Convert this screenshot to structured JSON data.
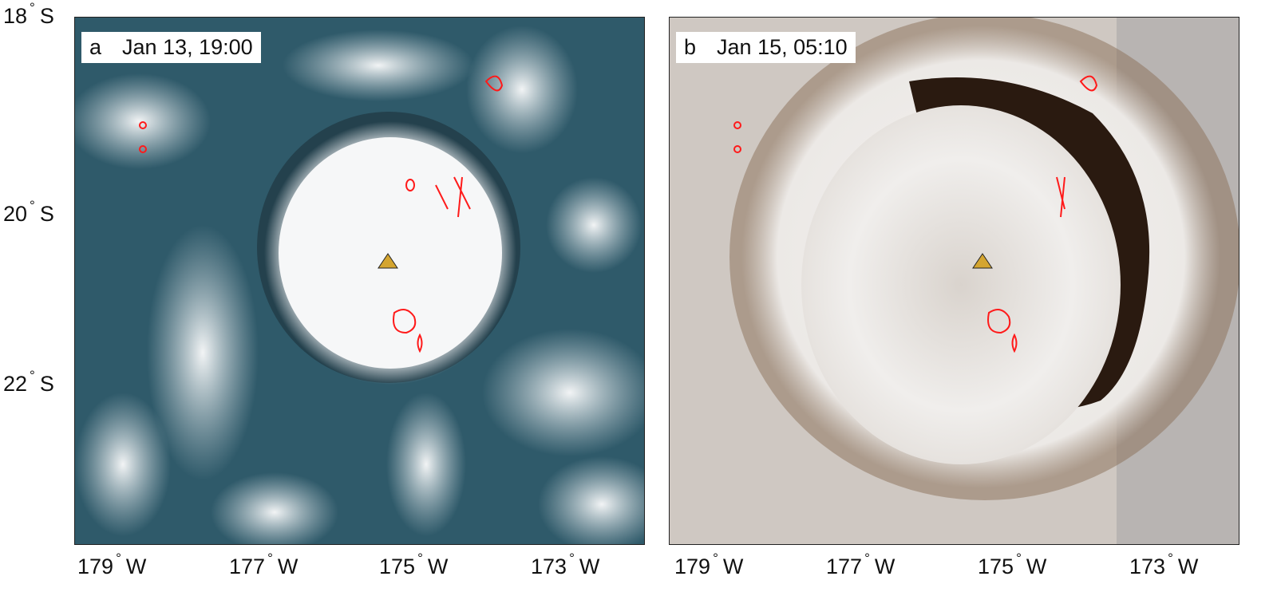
{
  "panels": [
    {
      "letter": "a",
      "timestamp": "Jan 13, 19:00",
      "background": "#2f5a6a"
    },
    {
      "letter": "b",
      "timestamp": "Jan 15, 05:10",
      "background": "#cfc8c2"
    }
  ],
  "lat_ticks": [
    {
      "value": "18",
      "hemi": "S"
    },
    {
      "value": "20",
      "hemi": "S"
    },
    {
      "value": "22",
      "hemi": "S"
    }
  ],
  "lon_ticks": [
    {
      "value": "179",
      "hemi": "W"
    },
    {
      "value": "177",
      "hemi": "W"
    },
    {
      "value": "175",
      "hemi": "W"
    },
    {
      "value": "173",
      "hemi": "W"
    }
  ],
  "degree_symbol": "°",
  "volcano_marker": {
    "icon": "triangle-icon",
    "color": "#d4a530"
  },
  "contour_color": "#ff1a1a"
}
